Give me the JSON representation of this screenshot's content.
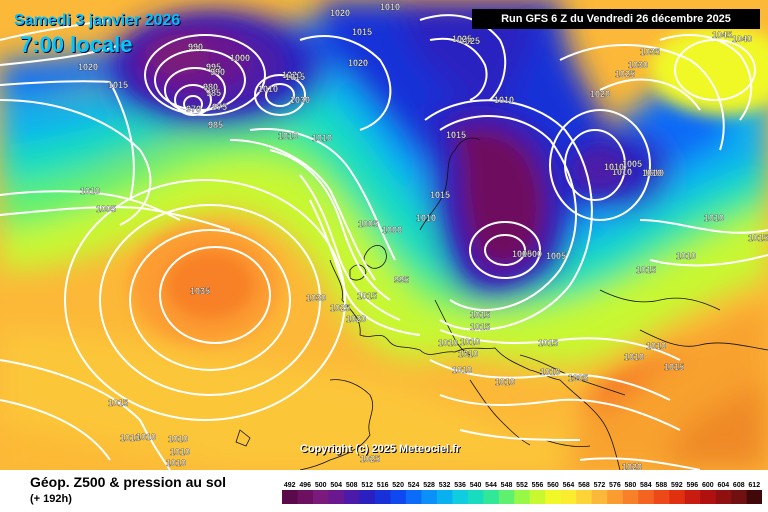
{
  "header": {
    "date": "Samedi 3 janvier 2026",
    "local_time": "7:00 locale",
    "run_info": "Run GFS 6 Z du Vendredi 26 décembre 2025"
  },
  "footer": {
    "product_title": "Géop. Z500 & pression au sol",
    "lead_time": "(+ 192h)",
    "copyright": "Copyright (c) 2025 Meteociel.fr"
  },
  "legend": {
    "values": [
      "492",
      "496",
      "500",
      "504",
      "508",
      "512",
      "516",
      "520",
      "524",
      "528",
      "532",
      "536",
      "540",
      "544",
      "548",
      "552",
      "556",
      "560",
      "564",
      "568",
      "572",
      "576",
      "580",
      "584",
      "588",
      "592",
      "596",
      "600",
      "604",
      "608",
      "612"
    ],
    "colors": [
      "#5a0a4a",
      "#6e1060",
      "#7a1a7a",
      "#6a1890",
      "#4b1aa8",
      "#2a20c0",
      "#1830d8",
      "#1048f0",
      "#0a6cf8",
      "#0a90f8",
      "#08b0f0",
      "#10cce0",
      "#18dcc0",
      "#30e898",
      "#60f070",
      "#98f848",
      "#c8f830",
      "#f0f828",
      "#fcec30",
      "#fcd438",
      "#fcb838",
      "#fc9c30",
      "#f88028",
      "#f46420",
      "#ec4818",
      "#e03010",
      "#c81c10",
      "#b01010",
      "#901010",
      "#701010",
      "#400808"
    ]
  },
  "map_labels": [
    {
      "text": "1020"
    },
    {
      "text": "1010"
    },
    {
      "text": "1020"
    },
    {
      "text": "1015"
    },
    {
      "text": "1025"
    },
    {
      "text": "990"
    },
    {
      "text": "995"
    },
    {
      "text": "1000"
    },
    {
      "text": "985"
    },
    {
      "text": "990"
    },
    {
      "text": "980"
    },
    {
      "text": "970"
    },
    {
      "text": "975"
    },
    {
      "text": "985"
    },
    {
      "text": "1020"
    },
    {
      "text": "1015"
    },
    {
      "text": "1030"
    },
    {
      "text": "1020"
    },
    {
      "text": "1010"
    },
    {
      "text": "1010"
    },
    {
      "text": "1025"
    },
    {
      "text": "1010"
    },
    {
      "text": "1015"
    },
    {
      "text": "1015"
    },
    {
      "text": "1020"
    },
    {
      "text": "1035"
    },
    {
      "text": "1030"
    },
    {
      "text": "1025"
    },
    {
      "text": "1045"
    },
    {
      "text": "1040"
    },
    {
      "text": "1005"
    },
    {
      "text": "1010"
    },
    {
      "text": "1010"
    },
    {
      "text": "1005"
    },
    {
      "text": "1010"
    },
    {
      "text": "1015"
    },
    {
      "text": "1010"
    },
    {
      "text": "1005"
    },
    {
      "text": "1000"
    },
    {
      "text": "1000"
    },
    {
      "text": "1005"
    },
    {
      "text": "995"
    },
    {
      "text": "1015"
    },
    {
      "text": "1015"
    },
    {
      "text": "1010"
    },
    {
      "text": "1010"
    },
    {
      "text": "1035"
    },
    {
      "text": "1030"
    },
    {
      "text": "1025"
    },
    {
      "text": "1015"
    },
    {
      "text": "1020"
    },
    {
      "text": "1015"
    },
    {
      "text": "1010"
    },
    {
      "text": "1010"
    },
    {
      "text": "1015"
    },
    {
      "text": "1010"
    },
    {
      "text": "1010"
    },
    {
      "text": "1005"
    },
    {
      "text": "1010"
    },
    {
      "text": "1010"
    },
    {
      "text": "1015"
    },
    {
      "text": "1010"
    },
    {
      "text": "1015"
    },
    {
      "text": "1010"
    },
    {
      "text": "1010"
    },
    {
      "text": "1010"
    },
    {
      "text": "1010"
    },
    {
      "text": "1025"
    },
    {
      "text": "1020"
    },
    {
      "text": "1010"
    },
    {
      "text": "1010"
    },
    {
      "text": "1005"
    },
    {
      "text": "1010"
    },
    {
      "text": "1015"
    },
    {
      "text": "1010"
    },
    {
      "text": "1010"
    }
  ]
}
